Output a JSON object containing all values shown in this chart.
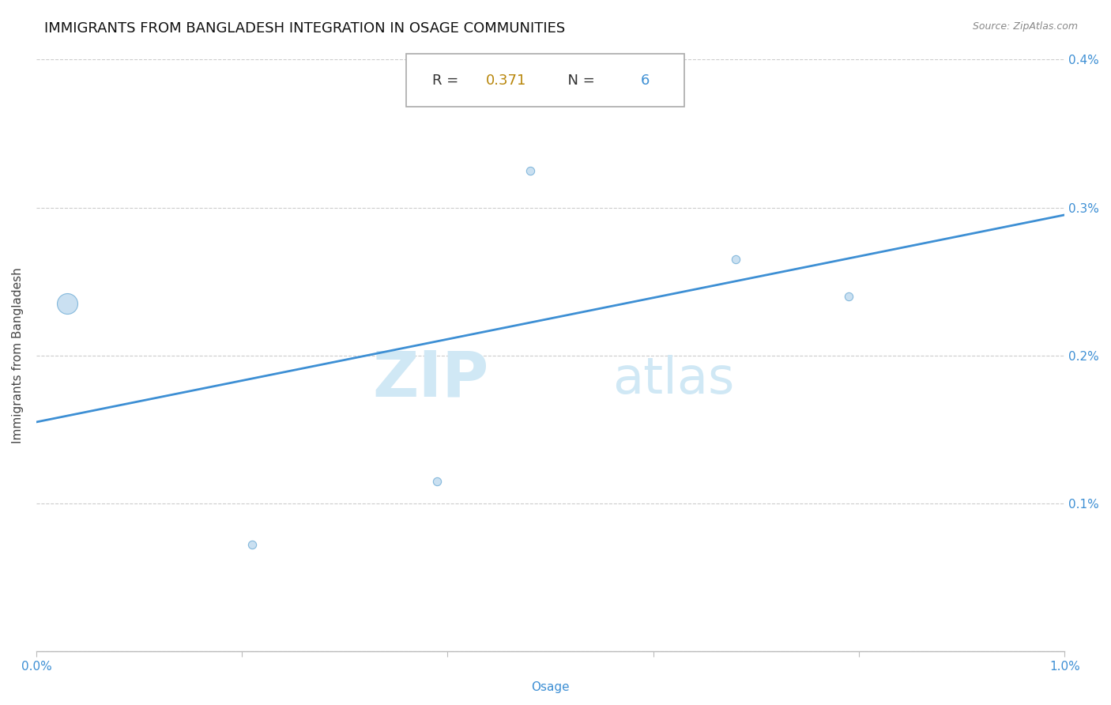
{
  "title": "IMMIGRANTS FROM BANGLADESH INTEGRATION IN OSAGE COMMUNITIES",
  "source": "Source: ZipAtlas.com",
  "xlabel": "Osage",
  "ylabel": "Immigrants from Bangladesh",
  "xlim": [
    0.0,
    0.01
  ],
  "ylim": [
    0.0,
    0.004
  ],
  "x_ticks": [
    0.0,
    0.002,
    0.004,
    0.006,
    0.008,
    0.01
  ],
  "x_tick_labels": [
    "0.0%",
    "",
    "",
    "",
    "",
    "1.0%"
  ],
  "y_ticks": [
    0.0,
    0.001,
    0.002,
    0.003,
    0.004
  ],
  "y_tick_labels": [
    "",
    "0.1%",
    "0.2%",
    "0.3%",
    "0.4%"
  ],
  "scatter_x": [
    0.0003,
    0.0021,
    0.0039,
    0.0048,
    0.0068,
    0.0079
  ],
  "scatter_y": [
    0.00235,
    0.00072,
    0.00115,
    0.00325,
    0.00265,
    0.0024
  ],
  "scatter_sizes": [
    350,
    55,
    55,
    55,
    55,
    55
  ],
  "scatter_color": "#c5ddf0",
  "scatter_edge_color": "#7ab3d9",
  "line_color": "#3d8fd4",
  "line_x_start": 0.0,
  "line_x_end": 0.01,
  "line_y_start": 0.00155,
  "line_y_end": 0.00295,
  "R_value": "0.371",
  "N_value": "6",
  "zip_color": "#d0e8f5",
  "atlas_color": "#d0e8f5",
  "title_fontsize": 13,
  "label_fontsize": 11,
  "tick_fontsize": 11,
  "background_color": "#ffffff",
  "grid_color": "#cccccc",
  "title_color": "#111111",
  "axis_label_color": "#3d8fd4",
  "ylabel_color": "#444444",
  "r_label_color": "#b8860b",
  "n_label_color": "#3d8fd4",
  "box_edge_color": "#aaaaaa",
  "source_color": "#888888",
  "spine_color": "#bbbbbb"
}
